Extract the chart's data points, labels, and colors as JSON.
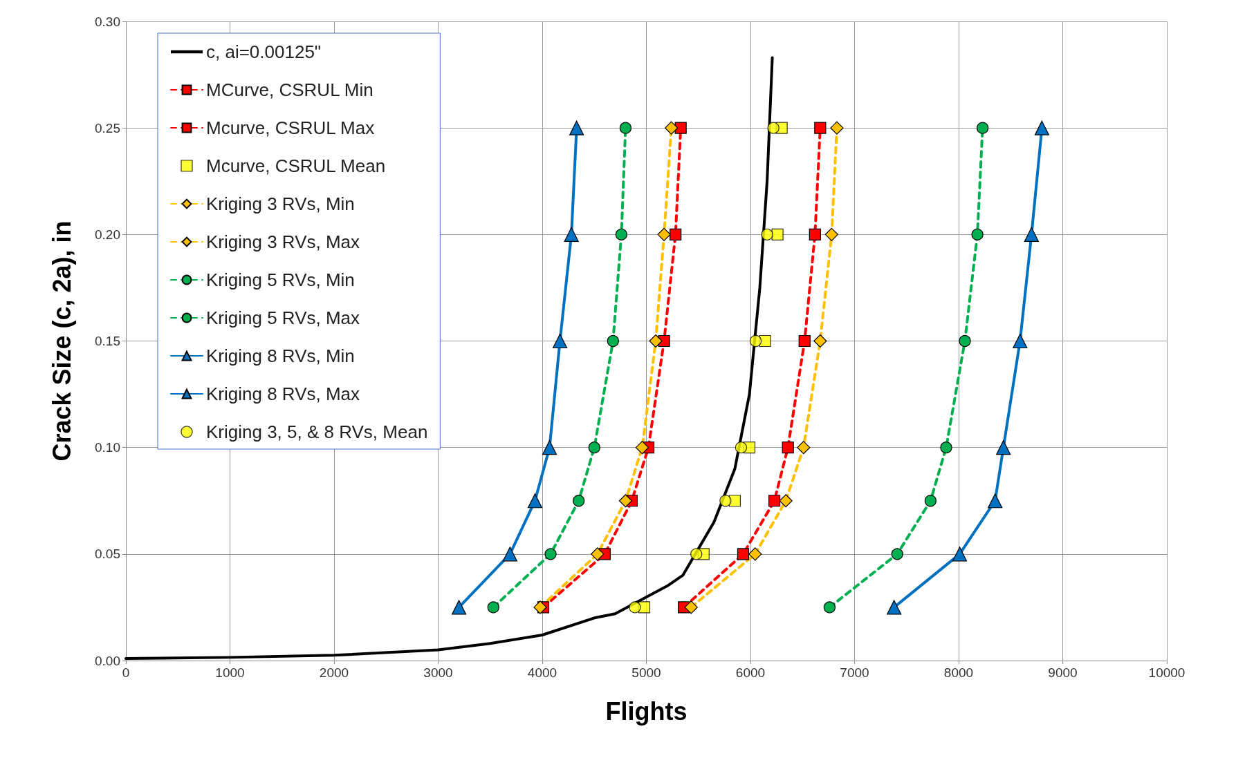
{
  "chart_data": {
    "type": "line",
    "xlabel": "Flights",
    "ylabel": "Crack Size (c, 2a), in",
    "xlim": [
      0,
      10000
    ],
    "xticks": [
      0,
      1000,
      2000,
      3000,
      4000,
      5000,
      6000,
      7000,
      8000,
      9000,
      10000
    ],
    "ylim": [
      0,
      0.3
    ],
    "yticks": [
      {
        "value": 0,
        "label": "0.00"
      },
      {
        "value": 0.05,
        "label": "0.05"
      },
      {
        "value": 0.1,
        "label": "0.10"
      },
      {
        "value": 0.15,
        "label": "0.15"
      },
      {
        "value": 0.2,
        "label": "0.20"
      },
      {
        "value": 0.25,
        "label": "0.25"
      },
      {
        "value": 0.3,
        "label": "0.30"
      }
    ],
    "grid": true,
    "legend": "top left",
    "series": [
      {
        "name": "c, ai=0.00125\"",
        "type": "line",
        "color": "#000000",
        "marker": "none",
        "line_style": "solid",
        "x": [
          0,
          1000,
          2000,
          3000,
          3500,
          4000,
          4500,
          4700,
          5200,
          5350,
          5650,
          5850,
          5990,
          6090,
          6160,
          6210
        ],
        "values": [
          0.001,
          0.0015,
          0.0025,
          0.005,
          0.008,
          0.012,
          0.02,
          0.022,
          0.035,
          0.04,
          0.065,
          0.09,
          0.125,
          0.175,
          0.225,
          0.283
        ]
      },
      {
        "name": "MCurve, CSRUL Min",
        "type": "line",
        "color": "#ff0000",
        "marker": "square",
        "line_style": "dashed",
        "x": [
          4010,
          4600,
          4860,
          5020,
          5170,
          5280,
          5330
        ],
        "values": [
          0.025,
          0.05,
          0.075,
          0.1,
          0.15,
          0.2,
          0.25
        ]
      },
      {
        "name": "Mcurve, CSRUL Max",
        "type": "line",
        "color": "#ff0000",
        "marker": "square",
        "line_style": "dashed",
        "x": [
          5360,
          5930,
          6230,
          6360,
          6520,
          6620,
          6670
        ],
        "values": [
          0.025,
          0.05,
          0.075,
          0.1,
          0.15,
          0.2,
          0.25
        ]
      },
      {
        "name": "Mcurve, CSRUL Mean",
        "type": "scatter",
        "color": "#ffff00",
        "marker": "square",
        "x": [
          4980,
          5550,
          5850,
          5990,
          6140,
          6260,
          6300
        ],
        "values": [
          0.025,
          0.05,
          0.075,
          0.1,
          0.15,
          0.2,
          0.25
        ]
      },
      {
        "name": "Kriging 3 RVs, Min",
        "type": "line",
        "color": "#ffc000",
        "marker": "diamond",
        "line_style": "dashed",
        "x": [
          3980,
          4530,
          4800,
          4960,
          5090,
          5170,
          5240
        ],
        "values": [
          0.025,
          0.05,
          0.075,
          0.1,
          0.15,
          0.2,
          0.25
        ]
      },
      {
        "name": "Kriging 3 RVs, Max",
        "type": "line",
        "color": "#ffc000",
        "marker": "diamond",
        "line_style": "dashed",
        "x": [
          5430,
          6045,
          6340,
          6510,
          6670,
          6780,
          6830
        ],
        "values": [
          0.025,
          0.05,
          0.075,
          0.1,
          0.15,
          0.2,
          0.25
        ]
      },
      {
        "name": "Kriging 5 RVs, Min",
        "type": "line",
        "color": "#00b050",
        "marker": "circle",
        "line_style": "dashed",
        "x": [
          3530,
          4080,
          4350,
          4500,
          4680,
          4760,
          4800
        ],
        "values": [
          0.025,
          0.05,
          0.075,
          0.1,
          0.15,
          0.2,
          0.25
        ]
      },
      {
        "name": "Kriging 5 RVs, Max",
        "type": "line",
        "color": "#00b050",
        "marker": "circle",
        "line_style": "dashed",
        "x": [
          6760,
          7410,
          7730,
          7880,
          8060,
          8180,
          8230
        ],
        "values": [
          0.025,
          0.05,
          0.075,
          0.1,
          0.15,
          0.2,
          0.25
        ]
      },
      {
        "name": "Kriging 8 RVs, Min",
        "type": "line",
        "color": "#0070c0",
        "marker": "triangle",
        "line_style": "solid",
        "x": [
          3200,
          3690,
          3930,
          4070,
          4170,
          4280,
          4330
        ],
        "values": [
          0.025,
          0.05,
          0.075,
          0.1,
          0.15,
          0.2,
          0.25
        ]
      },
      {
        "name": "Kriging 8 RVs, Max",
        "type": "line",
        "color": "#0070c0",
        "marker": "triangle",
        "line_style": "solid",
        "x": [
          7380,
          8010,
          8350,
          8430,
          8590,
          8700,
          8800
        ],
        "values": [
          0.025,
          0.05,
          0.075,
          0.1,
          0.15,
          0.2,
          0.25
        ]
      },
      {
        "name": "Kriging 3, 5, & 8 RVs, Mean",
        "type": "scatter",
        "color": "#ffff00",
        "marker": "circle",
        "x": [
          4890,
          5480,
          5760,
          5910,
          6050,
          6160,
          6220
        ],
        "values": [
          0.025,
          0.05,
          0.075,
          0.1,
          0.15,
          0.2,
          0.25
        ]
      }
    ]
  }
}
